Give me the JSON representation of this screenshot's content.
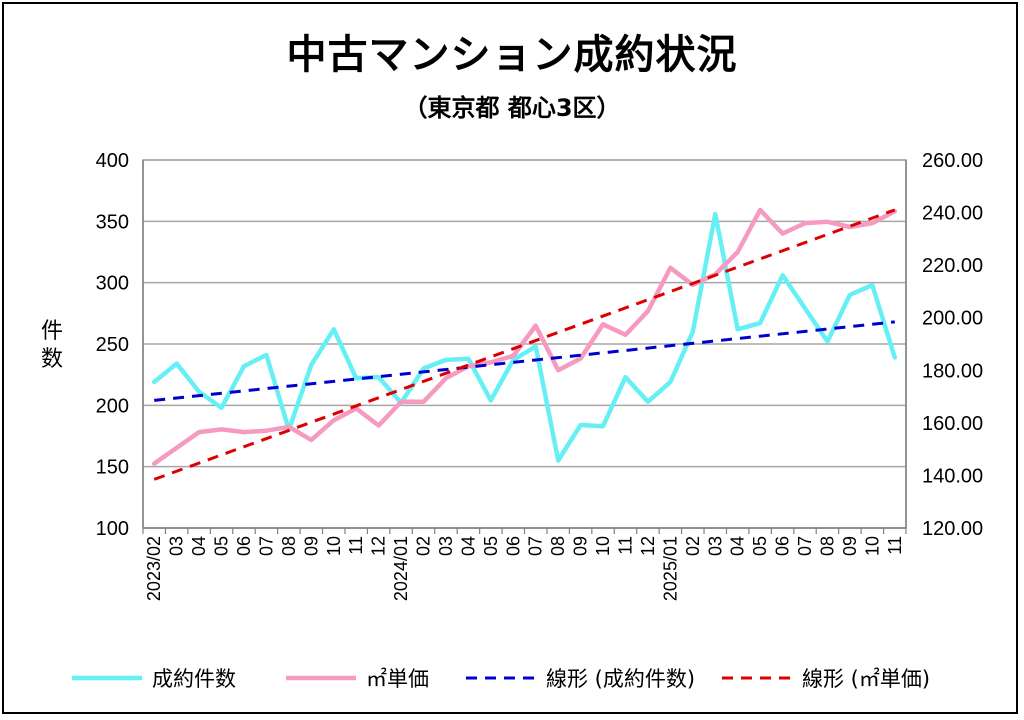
{
  "chart_data": {
    "type": "line",
    "title": "中古マンション成約状況",
    "subtitle": "（東京都 都心3区）",
    "ylabel": "件数",
    "y_left": {
      "min": 100,
      "max": 400,
      "step": 50,
      "ticks": [
        "100",
        "150",
        "200",
        "250",
        "300",
        "350",
        "400"
      ]
    },
    "y_right": {
      "min": 120,
      "max": 260,
      "step": 20,
      "ticks": [
        "120.00",
        "140.00",
        "160.00",
        "180.00",
        "200.00",
        "220.00",
        "240.00",
        "260.00"
      ]
    },
    "x_labels": [
      "2023/02",
      "03",
      "04",
      "05",
      "06",
      "07",
      "08",
      "09",
      "10",
      "11",
      "12",
      "2024/01",
      "02",
      "03",
      "04",
      "05",
      "06",
      "07",
      "08",
      "09",
      "10",
      "11",
      "12",
      "2025/01",
      "02",
      "03",
      "04",
      "05",
      "06",
      "07",
      "08",
      "09",
      "10",
      "11"
    ],
    "series": [
      {
        "name": "成約件数",
        "axis": "left",
        "color": "#66f0f5",
        "values": [
          219,
          234,
          211,
          198,
          232,
          241,
          180,
          233,
          262,
          222,
          223,
          202,
          230,
          237,
          238,
          204,
          237,
          248,
          155,
          184,
          183,
          223,
          203,
          219,
          260,
          356,
          262,
          267,
          306,
          279,
          252,
          290,
          298,
          239
        ]
      },
      {
        "name": "㎡単価",
        "axis": "right",
        "color": "#f59ac0",
        "values": [
          144.5,
          150.5,
          156.5,
          157.5,
          156.5,
          157.0,
          158.5,
          153.5,
          161.0,
          165.5,
          159.0,
          168.0,
          168.0,
          177.0,
          181.5,
          183.0,
          185.5,
          197.0,
          180.0,
          184.5,
          197.5,
          193.5,
          202.5,
          219.0,
          212.5,
          216.5,
          225.0,
          241.0,
          232.0,
          236.0,
          236.5,
          234.5,
          236.0,
          240.5
        ]
      },
      {
        "name": "線形 (成約件数)",
        "axis": "left",
        "color": "#0000cc",
        "dashed": true,
        "values": [
          204,
          268
        ]
      },
      {
        "name": "線形 (㎡単価)",
        "axis": "right",
        "color": "#dd0000",
        "dashed": true,
        "values": [
          138.5,
          241.0
        ]
      }
    ],
    "grid": true,
    "legend_position": "bottom"
  }
}
